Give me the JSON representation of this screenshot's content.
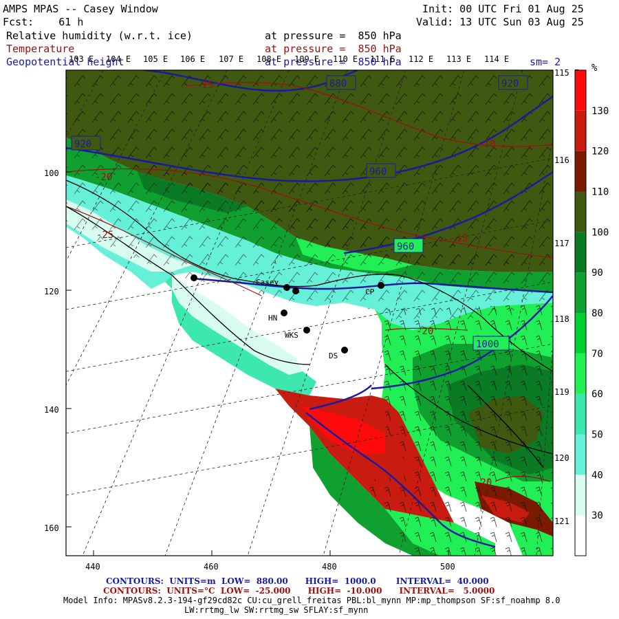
{
  "header": {
    "title": "AMPS MPAS -- Casey Window",
    "forecast": "Fcst:    61 h",
    "init": "Init: 00 UTC Fri 01 Aug 25",
    "valid": "Valid: 13 UTC Sun 03 Aug 25"
  },
  "fields": [
    {
      "name": "Relative humidity (w.r.t. ice)",
      "level": "at pressure =  850 hPa",
      "color": "#000000"
    },
    {
      "name": "Temperature",
      "level": "at pressure =  850 hPa",
      "color": "#9a1010"
    },
    {
      "name": "Geopotential height",
      "level": "at pressure =  850 hPa",
      "color": "#1a1aa0"
    }
  ],
  "smoothing": "sm= 2",
  "top_lon_labels": [
    "103 E",
    "104 E",
    "105 E",
    "106 E",
    "107 E",
    "108 E",
    "109 E",
    "110 E",
    "111 E",
    "112 E",
    "113 E",
    "114 E",
    "115 E"
  ],
  "right_lon_labels": [
    "116 E",
    "117 E",
    "118 E",
    "119 E",
    "120 E",
    "121 E"
  ],
  "x_ticks": [
    "440",
    "460",
    "480",
    "500"
  ],
  "y_ticks": [
    "100",
    "120",
    "140",
    "160"
  ],
  "stations": [
    {
      "label": "Casey"
    },
    {
      "label": "CP"
    },
    {
      "label": "HN"
    },
    {
      "label": "WKS"
    },
    {
      "label": "DS"
    }
  ],
  "height_contour_labels": [
    "880",
    "920",
    "920",
    "960",
    "1000"
  ],
  "temp_contour_labels": [
    "-15",
    "-20",
    "-25",
    "-10",
    "-15",
    "-20",
    "-20"
  ],
  "colorbar": {
    "unit": "%",
    "labels": [
      "130",
      "120",
      "110",
      "100",
      "90",
      "80",
      "70",
      "60",
      "50",
      "40",
      "30"
    ],
    "colors": [
      "#ffffff",
      "#d8fdf0",
      "#66f0d8",
      "#3de8b0",
      "#22ee55",
      "#00d030",
      "#0fa030",
      "#0b7a25",
      "#3f5a10",
      "#7a1a00",
      "#c81c10",
      "#ff0a0a"
    ]
  },
  "footer": {
    "contours1": "CONTOURS:  UNITS=m  LOW=  880.00      HIGH=  1000.0       INTERVAL=  40.000",
    "contours2": "CONTOURS:  UNITS=°C  LOW=  -25.000      HIGH=  -10.000      INTERVAL=   5.0000",
    "model1": "Model Info: MPASv8.2.3-194-gf29cd82c CU:cu_grell_freitas PBL:bl_mynn MP:mp_thompson SF:sf_noahmp 8.0",
    "model2": "LW:rrtmg_lw SW:rrtmg_sw SFLAY:sf_mynn"
  }
}
